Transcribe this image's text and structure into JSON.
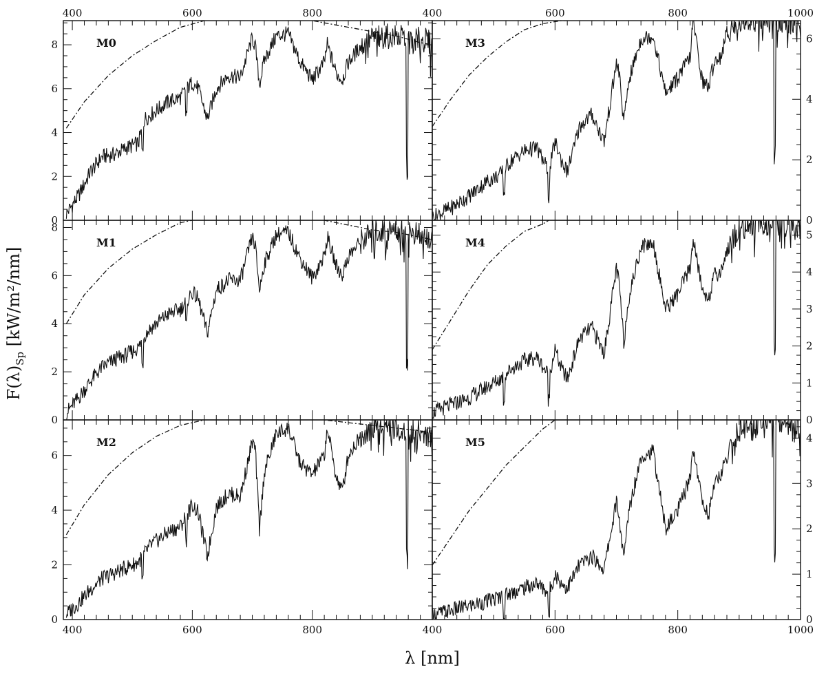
{
  "figure": {
    "ylabel": "F(λ)",
    "ylabel_sub": "Sp",
    "ylabel_unit": " [kW/m²/nm]",
    "xlabel": "λ [nm]"
  },
  "chart_data": [
    {
      "type": "line",
      "label": "M0",
      "xlim": [
        385,
        1000
      ],
      "ylim": [
        0,
        9.1
      ],
      "xlabel": "λ [nm]",
      "ylabel": "F(λ)Sp [kW/m²/nm]",
      "x_ticks": [
        400,
        600,
        800
      ],
      "y_ticks": [
        0,
        2,
        4,
        6,
        8
      ],
      "series": [
        {
          "style": "solid",
          "x": [
            390,
            410,
            430,
            450,
            470,
            490,
            510,
            520,
            530,
            560,
            580,
            600,
            610,
            625,
            640,
            660,
            680,
            700,
            705,
            712,
            720,
            740,
            760,
            780,
            800,
            820,
            825,
            840,
            850,
            860,
            880,
            900,
            930,
            960,
            990,
            1000
          ],
          "y": [
            0.3,
            1.1,
            2.2,
            2.9,
            3.0,
            3.3,
            3.5,
            4.6,
            4.8,
            5.4,
            5.6,
            6.3,
            6.0,
            4.6,
            6.0,
            6.6,
            6.5,
            8.3,
            7.9,
            6.2,
            7.3,
            8.4,
            8.5,
            7.2,
            6.4,
            7.2,
            8.0,
            6.7,
            6.4,
            7.2,
            7.9,
            8.3,
            8.4,
            8.3,
            8.2,
            8.0
          ]
        },
        {
          "style": "dashdot",
          "x": [
            390,
            420,
            460,
            500,
            540,
            580,
            620,
            660,
            700,
            740,
            780,
            820,
            860,
            900,
            940,
            980,
            1000
          ],
          "y": [
            4.2,
            5.4,
            6.6,
            7.5,
            8.2,
            8.8,
            9.1,
            9.2,
            9.2,
            9.2,
            9.2,
            9.0,
            8.8,
            8.6,
            8.4,
            8.1,
            8.0
          ]
        }
      ]
    },
    {
      "type": "line",
      "label": "M1",
      "xlim": [
        385,
        1000
      ],
      "ylim": [
        0,
        8.3
      ],
      "xlabel": "λ [nm]",
      "ylabel": "F(λ)Sp [kW/m²/nm]",
      "x_ticks": [
        400,
        600,
        800
      ],
      "y_ticks": [
        0,
        2,
        4,
        6,
        8
      ],
      "series": [
        {
          "style": "solid",
          "x": [
            390,
            410,
            430,
            450,
            470,
            490,
            510,
            520,
            530,
            560,
            580,
            600,
            610,
            625,
            640,
            660,
            680,
            700,
            705,
            712,
            720,
            740,
            760,
            780,
            800,
            820,
            825,
            840,
            850,
            860,
            880,
            900,
            930,
            960,
            990,
            1000
          ],
          "y": [
            0.3,
            0.9,
            1.6,
            2.2,
            2.5,
            2.7,
            3.0,
            3.5,
            3.8,
            4.4,
            4.6,
            5.3,
            5.0,
            3.6,
            5.4,
            5.8,
            5.8,
            7.6,
            7.2,
            5.4,
            6.5,
            7.7,
            7.8,
            6.7,
            5.9,
            6.8,
            7.6,
            6.4,
            6.0,
            6.8,
            7.4,
            7.8,
            7.9,
            7.8,
            7.6,
            7.4
          ]
        },
        {
          "style": "dashdot",
          "x": [
            390,
            420,
            460,
            500,
            540,
            580,
            620,
            660,
            700,
            740,
            780,
            820,
            860,
            900,
            940,
            980,
            1000
          ],
          "y": [
            4.0,
            5.2,
            6.3,
            7.1,
            7.7,
            8.2,
            8.4,
            8.5,
            8.5,
            8.5,
            8.4,
            8.3,
            8.1,
            7.9,
            7.8,
            7.6,
            7.5
          ]
        }
      ]
    },
    {
      "type": "line",
      "label": "M2",
      "xlim": [
        385,
        1000
      ],
      "ylim": [
        0,
        7.3
      ],
      "xlabel": "λ [nm]",
      "ylabel": "F(λ)Sp [kW/m²/nm]",
      "x_ticks": [
        400,
        600,
        800
      ],
      "y_ticks": [
        0,
        2,
        4,
        6
      ],
      "series": [
        {
          "style": "solid",
          "x": [
            390,
            410,
            430,
            450,
            470,
            490,
            510,
            520,
            530,
            560,
            580,
            600,
            610,
            625,
            640,
            660,
            680,
            700,
            705,
            712,
            720,
            740,
            760,
            780,
            800,
            820,
            825,
            840,
            850,
            860,
            880,
            900,
            930,
            960,
            990,
            1000
          ],
          "y": [
            0.2,
            0.6,
            1.1,
            1.5,
            1.7,
            1.9,
            2.1,
            2.4,
            2.7,
            3.2,
            3.4,
            4.2,
            3.9,
            2.3,
            4.1,
            4.6,
            4.5,
            6.5,
            6.2,
            3.3,
            5.4,
            6.8,
            7.0,
            5.7,
            5.3,
            6.0,
            7.0,
            5.2,
            4.7,
            6.0,
            6.7,
            7.1,
            7.0,
            6.9,
            6.8,
            6.6
          ]
        },
        {
          "style": "dashdot",
          "x": [
            390,
            420,
            460,
            500,
            540,
            580,
            620,
            660,
            700,
            740,
            780,
            820,
            860,
            900,
            940,
            980,
            1000
          ],
          "y": [
            3.1,
            4.2,
            5.3,
            6.1,
            6.7,
            7.1,
            7.3,
            7.4,
            7.4,
            7.4,
            7.4,
            7.3,
            7.2,
            7.1,
            7.0,
            6.9,
            6.8
          ]
        }
      ]
    },
    {
      "type": "line",
      "label": "M3",
      "xlim": [
        400,
        1000
      ],
      "ylim": [
        0,
        6.6
      ],
      "xlabel": "λ [nm]",
      "ylabel": "F(λ)Sp [kW/m²/nm]",
      "x_ticks": [
        400,
        600,
        800,
        1000
      ],
      "y_ticks": [
        0,
        2,
        4,
        6
      ],
      "series": [
        {
          "style": "solid",
          "x": [
            400,
            430,
            460,
            490,
            510,
            530,
            550,
            570,
            590,
            600,
            610,
            620,
            640,
            660,
            680,
            700,
            705,
            712,
            720,
            740,
            760,
            780,
            800,
            820,
            825,
            840,
            850,
            860,
            870,
            880,
            900,
            930,
            960,
            990,
            1000
          ],
          "y": [
            0.1,
            0.4,
            0.8,
            1.3,
            1.5,
            2.0,
            2.3,
            2.4,
            1.6,
            2.6,
            2.0,
            1.6,
            3.1,
            3.5,
            2.6,
            5.2,
            4.8,
            3.2,
            4.6,
            6.0,
            6.1,
            4.2,
            4.7,
            5.4,
            6.6,
            4.6,
            4.4,
            5.3,
            5.4,
            6.2,
            6.6,
            6.6,
            6.6,
            6.6,
            6.4
          ]
        },
        {
          "style": "dashdot",
          "x": [
            400,
            430,
            460,
            490,
            520,
            550,
            580,
            610,
            620
          ],
          "y": [
            3.1,
            4.0,
            4.8,
            5.4,
            5.9,
            6.3,
            6.5,
            6.6,
            6.6
          ]
        }
      ]
    },
    {
      "type": "line",
      "label": "M4",
      "xlim": [
        400,
        1000
      ],
      "ylim": [
        0,
        5.4
      ],
      "xlabel": "λ [nm]",
      "ylabel": "F(λ)Sp [kW/m²/nm]",
      "x_ticks": [
        400,
        600,
        800,
        1000
      ],
      "y_ticks": [
        0,
        1,
        2,
        3,
        4,
        5
      ],
      "series": [
        {
          "style": "solid",
          "x": [
            400,
            430,
            460,
            490,
            510,
            530,
            550,
            570,
            590,
            600,
            610,
            620,
            640,
            660,
            680,
            700,
            705,
            712,
            720,
            740,
            760,
            780,
            800,
            820,
            825,
            840,
            850,
            860,
            870,
            880,
            900,
            930,
            960,
            990,
            1000
          ],
          "y": [
            0.2,
            0.4,
            0.6,
            0.9,
            1.1,
            1.4,
            1.6,
            1.7,
            1.2,
            1.9,
            1.4,
            1.1,
            2.2,
            2.5,
            1.8,
            4.1,
            3.6,
            2.1,
            3.3,
            4.7,
            4.8,
            3.0,
            3.4,
            4.1,
            4.9,
            3.5,
            3.3,
            3.9,
            4.0,
            4.6,
            5.2,
            5.3,
            5.3,
            5.3,
            5.1
          ]
        },
        {
          "style": "dashdot",
          "x": [
            400,
            430,
            460,
            490,
            520,
            550,
            580,
            590
          ],
          "y": [
            1.9,
            2.7,
            3.5,
            4.2,
            4.7,
            5.1,
            5.3,
            5.4
          ]
        }
      ]
    },
    {
      "type": "line",
      "label": "M5",
      "xlim": [
        400,
        1000
      ],
      "ylim": [
        0,
        4.4
      ],
      "xlabel": "λ [nm]",
      "ylabel": "F(λ)Sp [kW/m²/nm]",
      "x_ticks": [
        400,
        600,
        800,
        1000
      ],
      "y_ticks": [
        0,
        1,
        2,
        3,
        4
      ],
      "series": [
        {
          "style": "solid",
          "x": [
            400,
            430,
            460,
            490,
            510,
            530,
            550,
            570,
            590,
            600,
            610,
            620,
            640,
            660,
            680,
            700,
            705,
            712,
            720,
            740,
            760,
            780,
            800,
            820,
            825,
            840,
            850,
            860,
            870,
            880,
            900,
            930,
            960,
            990,
            1000
          ],
          "y": [
            0.1,
            0.2,
            0.3,
            0.4,
            0.5,
            0.6,
            0.7,
            0.8,
            0.6,
            1.0,
            0.8,
            0.7,
            1.2,
            1.4,
            1.1,
            2.6,
            2.2,
            1.3,
            2.4,
            3.6,
            3.7,
            2.0,
            2.4,
            3.1,
            3.8,
            2.6,
            2.3,
            3.0,
            3.2,
            3.6,
            4.2,
            4.4,
            4.4,
            4.4,
            4.3
          ]
        },
        {
          "style": "dashdot",
          "x": [
            400,
            430,
            460,
            490,
            520,
            550,
            580,
            600
          ],
          "y": [
            1.2,
            1.8,
            2.4,
            2.9,
            3.4,
            3.8,
            4.2,
            4.4
          ]
        }
      ]
    }
  ]
}
